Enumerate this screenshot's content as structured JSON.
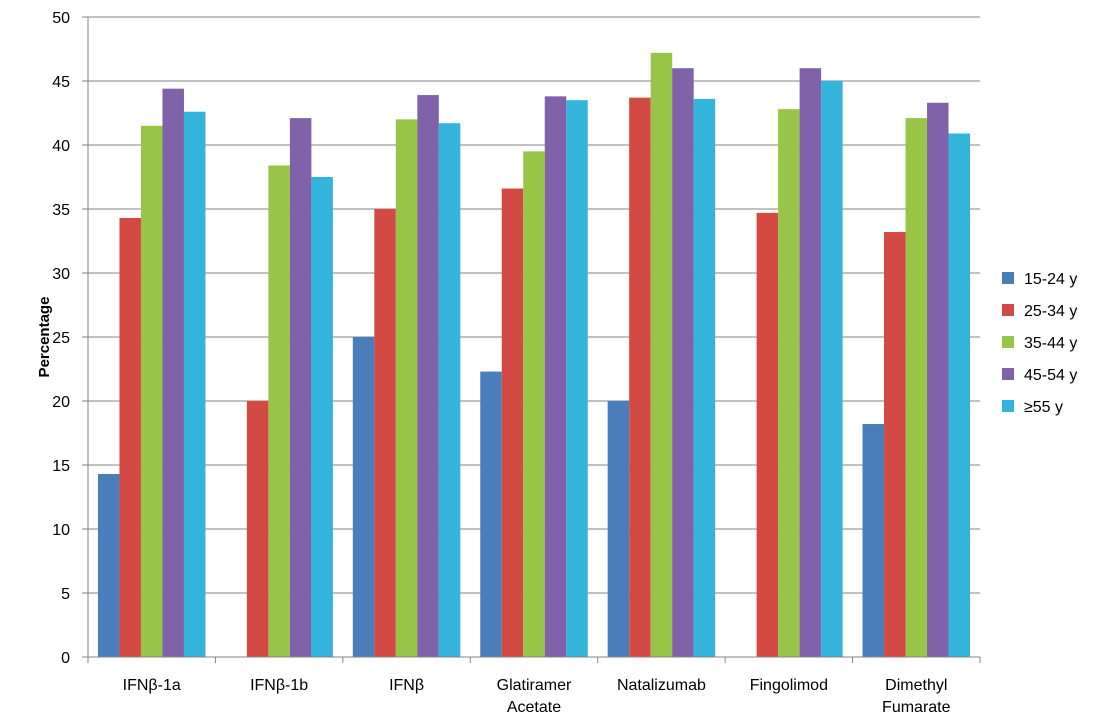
{
  "chart_data": {
    "type": "bar",
    "title": "",
    "xlabel": "",
    "ylabel": "Percentage",
    "ylim": [
      0,
      50
    ],
    "yticks": [
      0,
      5,
      10,
      15,
      20,
      25,
      30,
      35,
      40,
      45,
      50
    ],
    "grid": true,
    "legend": "right",
    "categories": [
      [
        "IFNβ-1a"
      ],
      [
        "IFNβ-1b"
      ],
      [
        "IFNβ"
      ],
      [
        "Glatiramer",
        "Acetate"
      ],
      [
        "Natalizumab"
      ],
      [
        "Fingolimod"
      ],
      [
        "Dimethyl",
        "Fumarate"
      ]
    ],
    "series": [
      {
        "name": "15-24 y",
        "color": "#4a7ebb",
        "values": [
          14.3,
          null,
          25.0,
          22.3,
          20.0,
          null,
          18.2
        ]
      },
      {
        "name": "25-34 y",
        "color": "#d24a43",
        "values": [
          34.3,
          20.0,
          35.0,
          36.6,
          43.7,
          34.7,
          33.2
        ]
      },
      {
        "name": "35-44 y",
        "color": "#98c447",
        "values": [
          41.5,
          38.4,
          42.0,
          39.5,
          47.2,
          42.8,
          42.1
        ]
      },
      {
        "name": "45-54 y",
        "color": "#7f62a8",
        "values": [
          44.4,
          42.1,
          43.9,
          43.8,
          46.0,
          46.0,
          43.3
        ]
      },
      {
        "name": "≥55 y",
        "color": "#34b4da",
        "values": [
          42.6,
          37.5,
          41.7,
          43.5,
          43.6,
          45.0,
          40.9
        ]
      }
    ]
  }
}
